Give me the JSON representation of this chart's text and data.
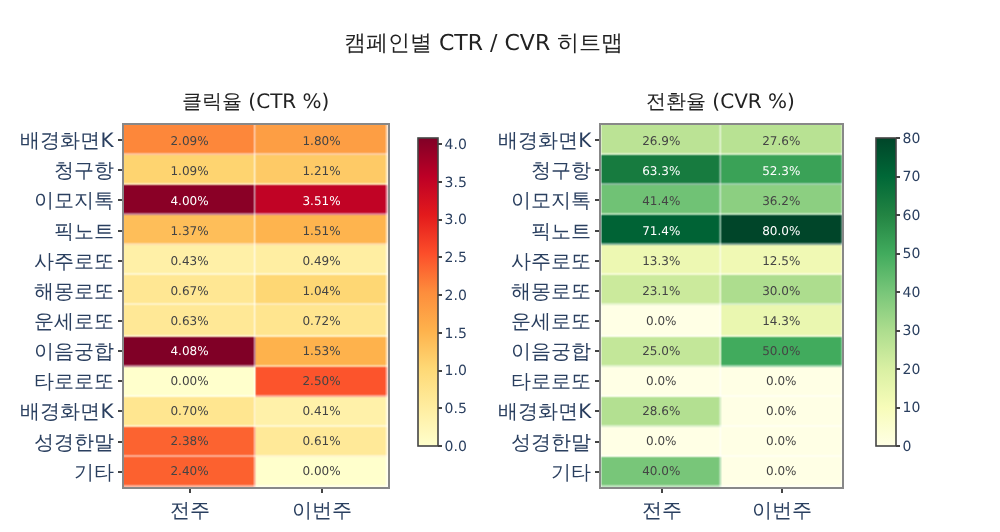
{
  "chart_data": [
    {
      "type": "heatmap",
      "title": "캠페인별 CTR / CVR 히트맵",
      "subtitle": "클릭율 (CTR %)",
      "categories": [
        "전주",
        "이번주"
      ],
      "y_categories": [
        "배경화면K",
        "청구항",
        "이모지톡",
        "픽노트",
        "사주로또",
        "해몽로또",
        "운세로또",
        "이음궁합",
        "타로로또",
        "배경화면K",
        "성경한말",
        "기타"
      ],
      "cells": [
        [
          2.09,
          1.8
        ],
        [
          1.09,
          1.21
        ],
        [
          4.0,
          3.51
        ],
        [
          1.37,
          1.51
        ],
        [
          0.43,
          0.49
        ],
        [
          0.67,
          1.04
        ],
        [
          0.63,
          0.72
        ],
        [
          4.08,
          1.53
        ],
        [
          0.0,
          2.5
        ],
        [
          0.7,
          0.41
        ],
        [
          2.38,
          0.61
        ],
        [
          2.4,
          0.0
        ]
      ],
      "cell_labels": [
        [
          "2.09%",
          "1.80%"
        ],
        [
          "1.09%",
          "1.21%"
        ],
        [
          "4.00%",
          "3.51%"
        ],
        [
          "1.37%",
          "1.51%"
        ],
        [
          "0.43%",
          "0.49%"
        ],
        [
          "0.67%",
          "1.04%"
        ],
        [
          "0.63%",
          "0.72%"
        ],
        [
          "4.08%",
          "1.53%"
        ],
        [
          "0.00%",
          "2.50%"
        ],
        [
          "0.70%",
          "0.41%"
        ],
        [
          "2.38%",
          "0.61%"
        ],
        [
          "2.40%",
          "0.00%"
        ]
      ],
      "clim": [
        0,
        4.08
      ],
      "cticks": [
        {
          "value": 0,
          "label": "0.0"
        },
        0.5,
        {
          "value": 1,
          "label": "1.0"
        },
        1.5,
        {
          "value": 2,
          "label": "2.0"
        },
        2.5,
        {
          "value": 3,
          "label": "3.0"
        },
        3.5,
        {
          "value": 4,
          "label": "4.0"
        }
      ]
    },
    {
      "type": "heatmap",
      "subtitle": "전환율 (CVR %)",
      "categories": [
        "전주",
        "이번주"
      ],
      "y_categories": [
        "배경화면K",
        "청구항",
        "이모지톡",
        "픽노트",
        "사주로또",
        "해몽로또",
        "운세로또",
        "이음궁합",
        "타로로또",
        "배경화면K",
        "성경한말",
        "기타"
      ],
      "cells": [
        [
          26.9,
          27.6
        ],
        [
          63.3,
          52.3
        ],
        [
          41.4,
          36.2
        ],
        [
          71.4,
          80.0
        ],
        [
          13.3,
          12.5
        ],
        [
          23.1,
          30.0
        ],
        [
          0.0,
          14.3
        ],
        [
          25.0,
          50.0
        ],
        [
          0.0,
          0.0
        ],
        [
          28.6,
          0.0
        ],
        [
          0.0,
          0.0
        ],
        [
          40.0,
          0.0
        ]
      ],
      "cell_labels": [
        [
          "26.9%",
          "27.6%"
        ],
        [
          "63.3%",
          "52.3%"
        ],
        [
          "41.4%",
          "36.2%"
        ],
        [
          "71.4%",
          "80.0%"
        ],
        [
          "13.3%",
          "12.5%"
        ],
        [
          "23.1%",
          "30.0%"
        ],
        [
          "0.0%",
          "14.3%"
        ],
        [
          "25.0%",
          "50.0%"
        ],
        [
          "0.0%",
          "0.0%"
        ],
        [
          "28.6%",
          "0.0%"
        ],
        [
          "0.0%",
          "0.0%"
        ],
        [
          "40.0%",
          "0.0%"
        ]
      ],
      "clim": [
        0,
        80
      ],
      "cticks": [
        0,
        10,
        20,
        30,
        40,
        50,
        60,
        70,
        80
      ]
    }
  ]
}
